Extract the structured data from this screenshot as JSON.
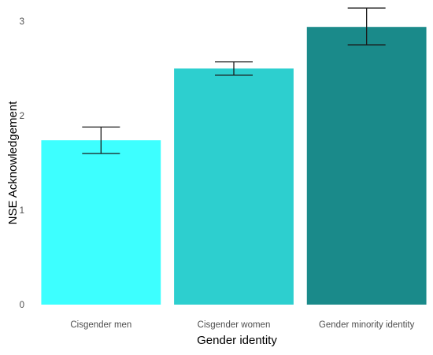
{
  "chart_data": {
    "type": "bar",
    "title": "",
    "xlabel": "Gender identity",
    "ylabel": "NSE Acknowledgement",
    "categories": [
      "Cisgender men",
      "Cisgender women",
      "Gender minority identity"
    ],
    "values": [
      1.74,
      2.5,
      2.94
    ],
    "error_low": [
      1.6,
      2.43,
      2.75
    ],
    "error_high": [
      1.88,
      2.57,
      3.14
    ],
    "ylim": [
      0,
      3.15
    ],
    "yticks": [
      0,
      1,
      2,
      3
    ],
    "colors": [
      "#3dffff",
      "#2dcfcf",
      "#1a8a8a"
    ],
    "error_bar_color": "#1a1a1a",
    "grid": false,
    "legend": false
  }
}
